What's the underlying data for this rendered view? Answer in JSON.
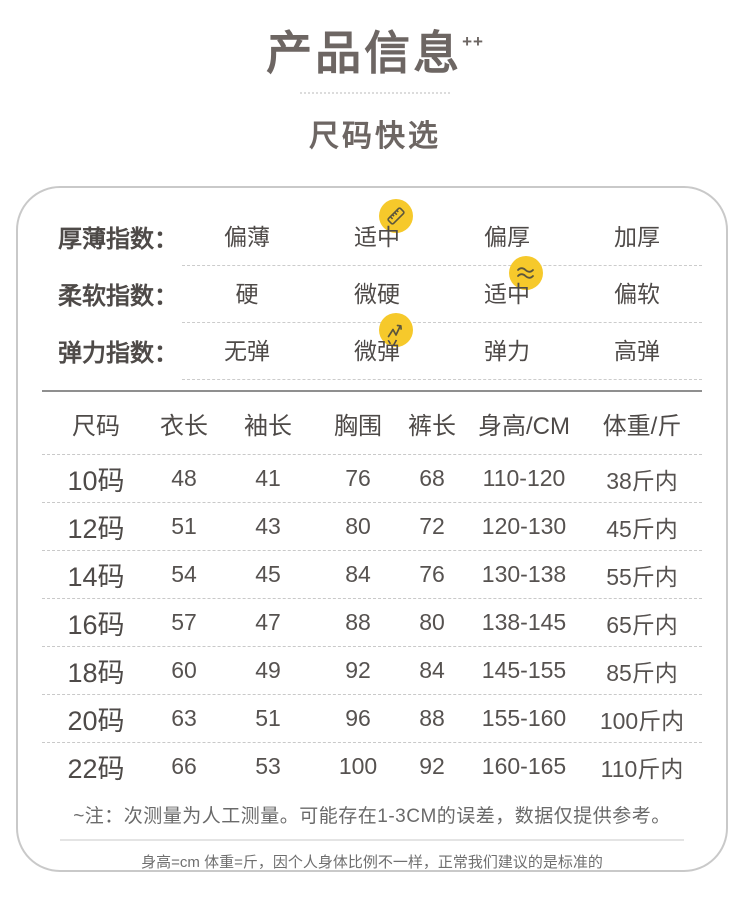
{
  "page": {
    "title": "产品信息",
    "title_superscript": "++",
    "subtitle": "尺码快选"
  },
  "index_section": {
    "badge_color": "#F6C92B",
    "badge_icon_color": "#5c563c",
    "rows": [
      {
        "label": "厚薄指数：",
        "values": [
          "偏薄",
          "适中",
          "偏厚",
          "加厚"
        ],
        "badge_index": 1,
        "badge_icon": "ruler-icon"
      },
      {
        "label": "柔软指数：",
        "values": [
          "硬",
          "微硬",
          "适中",
          "偏软"
        ],
        "badge_index": 2,
        "badge_icon": "softness-wave-icon"
      },
      {
        "label": "弹力指数：",
        "values": [
          "无弹",
          "微弹",
          "弹力",
          "高弹"
        ],
        "badge_index": 1,
        "badge_icon": "stretch-icon"
      }
    ]
  },
  "size_table": {
    "headers": [
      "尺码",
      "衣长",
      "袖长",
      "胸围",
      "裤长",
      "身高/CM",
      "体重/斤"
    ],
    "rows": [
      [
        "10码",
        "48",
        "41",
        "76",
        "68",
        "110-120",
        "38斤内"
      ],
      [
        "12码",
        "51",
        "43",
        "80",
        "72",
        "120-130",
        "45斤内"
      ],
      [
        "14码",
        "54",
        "45",
        "84",
        "76",
        "130-138",
        "55斤内"
      ],
      [
        "16码",
        "57",
        "47",
        "88",
        "80",
        "138-145",
        "65斤内"
      ],
      [
        "18码",
        "60",
        "49",
        "92",
        "84",
        "145-155",
        "85斤内"
      ],
      [
        "20码",
        "63",
        "51",
        "96",
        "88",
        "155-160",
        "100斤内"
      ],
      [
        "22码",
        "66",
        "53",
        "100",
        "92",
        "160-165",
        "110斤内"
      ]
    ]
  },
  "notes": {
    "note1": "~注：次测量为人工测量。可能存在1-3CM的误差，数据仅提供参考。",
    "note2": "身高=cm 体重=斤，因个人身体比例不一样，正常我们建议的是标准的"
  }
}
